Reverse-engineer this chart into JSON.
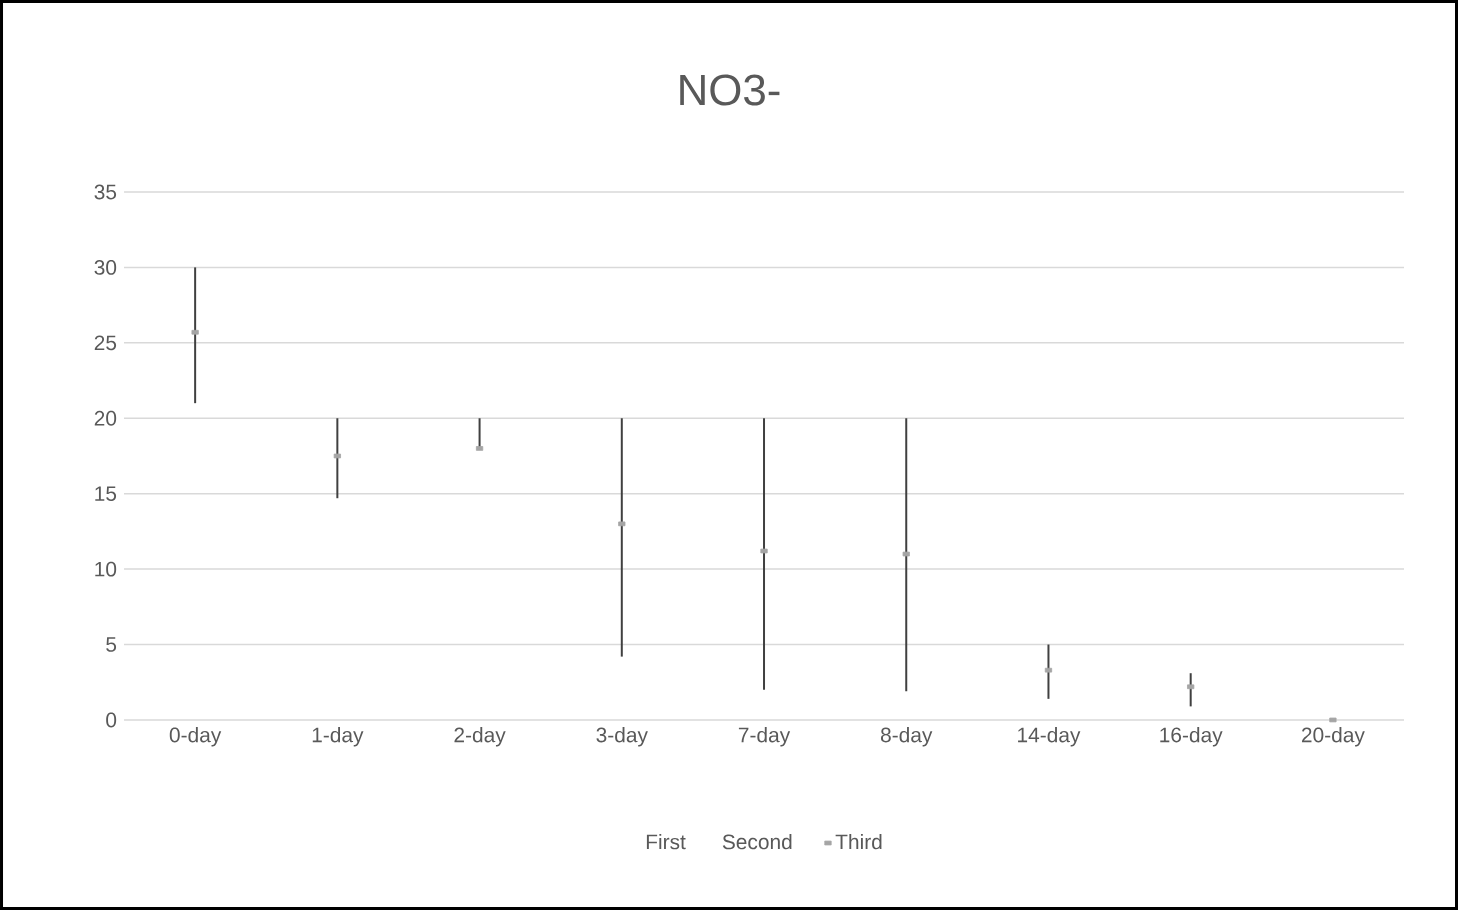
{
  "chart_data": {
    "type": "scatter",
    "title": "NO3-",
    "categories": [
      "0-day",
      "1-day",
      "2-day",
      "3-day",
      "7-day",
      "8-day",
      "14-day",
      "16-day",
      "20-day"
    ],
    "series": [
      {
        "name": "Third",
        "marker": "square",
        "color": "#a5a5a5",
        "values": [
          25.7,
          17.5,
          18.0,
          13.0,
          11.2,
          11.0,
          3.3,
          2.2,
          0
        ],
        "errors": [
          [
            21.0,
            30
          ],
          [
            14.7,
            20
          ],
          [
            18.0,
            20
          ],
          [
            4.2,
            20
          ],
          [
            2.0,
            20
          ],
          [
            1.9,
            20
          ],
          [
            1.4,
            5.0
          ],
          [
            0.9,
            3.1
          ],
          null
        ]
      }
    ],
    "annotations": [
      "First",
      "Second"
    ],
    "ylim": [
      0,
      35
    ],
    "yticks": [
      0,
      5,
      10,
      15,
      20,
      25,
      30,
      35
    ],
    "grid": "y",
    "legend": "bottom"
  }
}
